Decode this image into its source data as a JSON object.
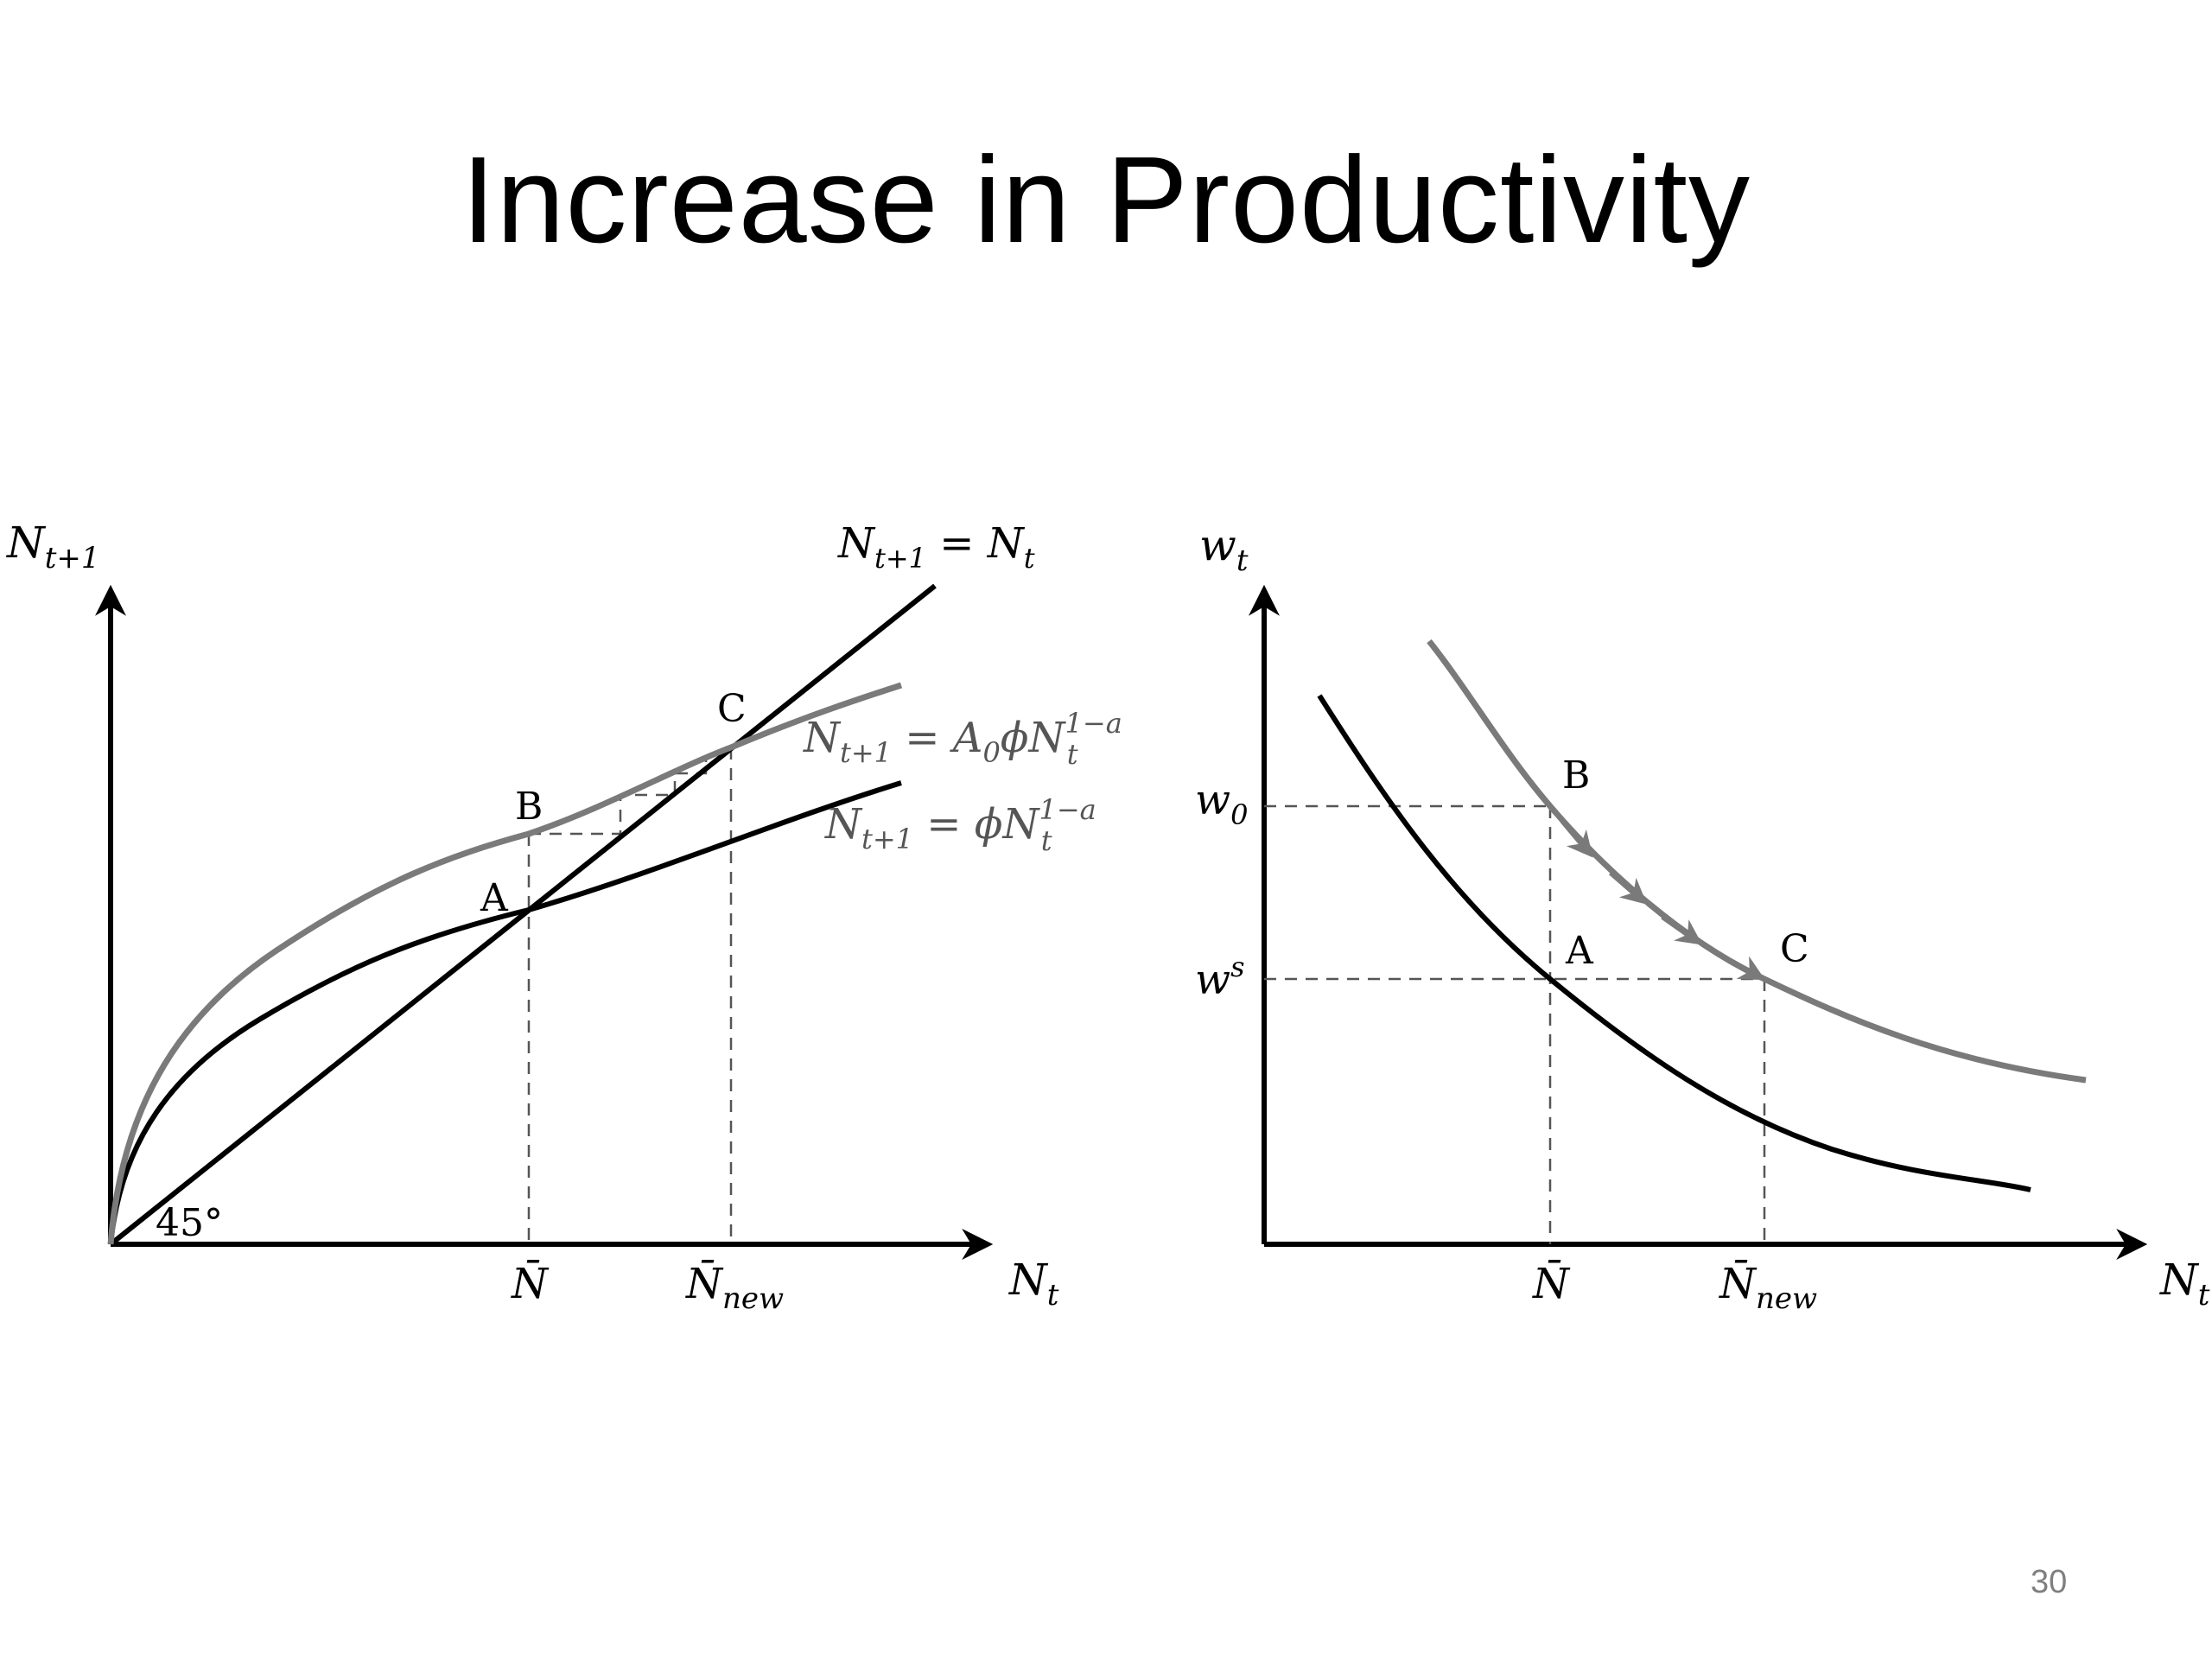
{
  "slide": {
    "title": "Increase in Productivity",
    "page_number": "30"
  },
  "left_diagram": {
    "y_axis_label": {
      "base": "N",
      "sub": "t+1"
    },
    "x_axis_label": {
      "base": "N",
      "sub": "t"
    },
    "angle_label": "45°",
    "line_45": {
      "lhs_base": "N",
      "lhs_sub": "t+1",
      "eq": " = ",
      "rhs_base": "N",
      "rhs_sub": "t"
    },
    "curve_new": {
      "lhs_base": "N",
      "lhs_sub": "t+1",
      "eq": " = ",
      "coef": "A",
      "coef_sub": "0",
      "phi": "ϕ",
      "rhs_base": "N",
      "rhs_sub": "t",
      "rhs_sup": "1−a"
    },
    "curve_old": {
      "lhs_base": "N",
      "lhs_sub": "t+1",
      "eq": " = ",
      "phi": "ϕ",
      "rhs_base": "N",
      "rhs_sub": "t",
      "rhs_sup": "1−a"
    },
    "points": {
      "a": "A",
      "b": "B",
      "c": "C"
    },
    "x_ticks": {
      "nbar": {
        "base": "N̄"
      },
      "nnew": {
        "base": "N̄",
        "sub": "new"
      }
    }
  },
  "right_diagram": {
    "y_axis_label": {
      "base": "w",
      "sub": "t"
    },
    "x_axis_label": {
      "base": "N",
      "sub": "t"
    },
    "y_ticks": {
      "w0": {
        "base": "w",
        "sub": "0"
      },
      "ws": {
        "base": "w",
        "sup": "s"
      }
    },
    "points": {
      "a": "A",
      "b": "B",
      "c": "C"
    },
    "x_ticks": {
      "nbar": {
        "base": "N̄"
      },
      "nnew": {
        "base": "N̄",
        "sub": "new"
      }
    }
  },
  "colors": {
    "black_curve": "#000000",
    "gray_curve": "#7a7a7a",
    "dashed_guides": "#555555",
    "page_number": "#7f7f7f"
  }
}
